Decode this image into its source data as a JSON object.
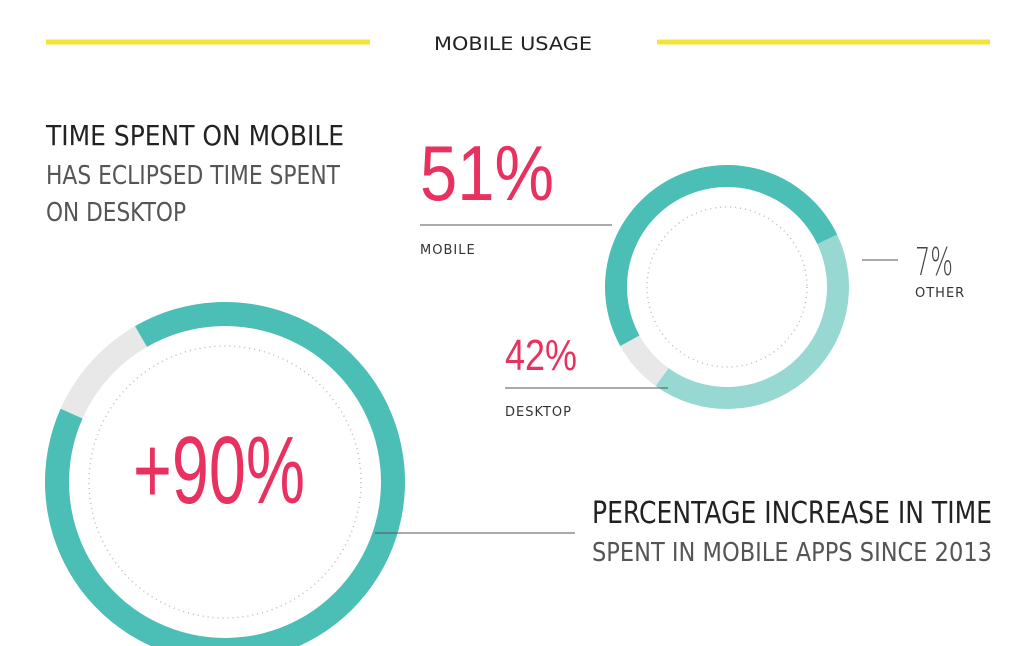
{
  "header": "MOBILE USAGE",
  "chart_data": [
    {
      "type": "donut",
      "title": "TIME SPENT ON MOBILE",
      "subtitle": [
        "HAS ECLIPSED TIME SPENT",
        "ON DESKTOP"
      ],
      "categories": [
        "MOBILE",
        "DESKTOP",
        "OTHER"
      ],
      "values": [
        51,
        42,
        7
      ],
      "value_labels": [
        "51%",
        "42%",
        "7%"
      ],
      "colors": [
        "#4bbfb6",
        "#98d8d3",
        "#e8e8e8"
      ]
    },
    {
      "type": "donut",
      "title": "PERCENTAGE INCREASE IN TIME",
      "subtitle": [
        "SPENT IN MOBILE APPS SINCE 2013"
      ],
      "values": [
        90
      ],
      "value_labels": [
        "+90%"
      ],
      "colors": [
        "#4bbfb6"
      ],
      "track_color": "#e8e8e8"
    }
  ]
}
